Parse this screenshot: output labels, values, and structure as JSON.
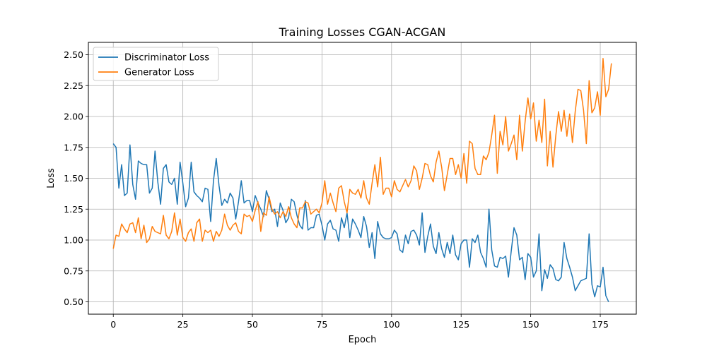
{
  "chart_data": {
    "type": "line",
    "title": "Training Losses CGAN-ACGAN",
    "xlabel": "Epoch",
    "ylabel": "Loss",
    "xlim": [
      -8.95,
      187.95
    ],
    "ylim": [
      0.4,
      2.6
    ],
    "x_ticks": [
      0,
      25,
      50,
      75,
      100,
      125,
      150,
      175
    ],
    "y_ticks": [
      0.5,
      0.75,
      1.0,
      1.25,
      1.5,
      1.75,
      2.0,
      2.25,
      2.5
    ],
    "x_tick_labels": [
      "0",
      "25",
      "50",
      "75",
      "100",
      "125",
      "150",
      "175"
    ],
    "y_tick_labels": [
      "0.50",
      "0.75",
      "1.00",
      "1.25",
      "1.50",
      "1.75",
      "2.00",
      "2.25",
      "2.50"
    ],
    "grid": true,
    "legend": "top-left",
    "x_start": 0,
    "series": [
      {
        "name": "Discriminator Loss",
        "color": "#1f77b4",
        "values": [
          1.78,
          1.75,
          1.42,
          1.61,
          1.36,
          1.38,
          1.77,
          1.45,
          1.33,
          1.64,
          1.62,
          1.61,
          1.61,
          1.38,
          1.42,
          1.72,
          1.47,
          1.29,
          1.58,
          1.61,
          1.47,
          1.45,
          1.5,
          1.29,
          1.63,
          1.46,
          1.27,
          1.34,
          1.63,
          1.39,
          1.36,
          1.34,
          1.31,
          1.42,
          1.41,
          1.15,
          1.48,
          1.66,
          1.44,
          1.28,
          1.33,
          1.3,
          1.38,
          1.34,
          1.17,
          1.31,
          1.48,
          1.3,
          1.32,
          1.32,
          1.23,
          1.36,
          1.3,
          1.25,
          1.19,
          1.4,
          1.33,
          1.23,
          1.25,
          1.11,
          1.3,
          1.24,
          1.14,
          1.18,
          1.33,
          1.31,
          1.2,
          1.12,
          1.09,
          1.32,
          1.08,
          1.1,
          1.1,
          1.2,
          1.21,
          1.12,
          1.0,
          1.13,
          1.16,
          1.09,
          1.08,
          0.99,
          1.18,
          1.1,
          1.22,
          1.02,
          1.17,
          1.13,
          1.08,
          1.02,
          1.19,
          1.11,
          0.94,
          1.06,
          0.85,
          1.15,
          1.05,
          1.02,
          1.01,
          1.01,
          1.02,
          1.08,
          1.05,
          0.92,
          0.9,
          1.04,
          0.97,
          1.07,
          1.08,
          1.04,
          0.96,
          1.22,
          0.9,
          1.03,
          1.13,
          0.95,
          0.89,
          1.06,
          0.93,
          0.86,
          0.98,
          0.89,
          1.04,
          0.88,
          0.84,
          0.97,
          1.0,
          1.0,
          0.78,
          1.01,
          0.98,
          1.04,
          0.9,
          0.85,
          0.78,
          1.25,
          0.92,
          0.79,
          0.78,
          0.86,
          0.85,
          0.87,
          0.7,
          0.91,
          1.1,
          1.04,
          0.84,
          0.86,
          0.68,
          0.89,
          0.86,
          0.7,
          0.75,
          1.05,
          0.59,
          0.76,
          0.69,
          0.8,
          0.77,
          0.68,
          0.67,
          0.7,
          0.98,
          0.85,
          0.78,
          0.7,
          0.59,
          0.63,
          0.67,
          0.68,
          0.69,
          1.05,
          0.64,
          0.54,
          0.63,
          0.62,
          0.78,
          0.55,
          0.5
        ]
      },
      {
        "name": "Generator Loss",
        "color": "#ff7f0e",
        "values": [
          0.93,
          1.04,
          1.03,
          1.13,
          1.09,
          1.06,
          1.13,
          1.14,
          1.06,
          1.18,
          1.01,
          1.12,
          0.98,
          1.01,
          1.11,
          1.07,
          1.06,
          1.05,
          1.2,
          1.04,
          1.01,
          1.07,
          1.22,
          1.04,
          1.17,
          1.02,
          0.99,
          1.06,
          1.09,
          0.99,
          1.14,
          1.17,
          0.99,
          1.08,
          1.06,
          1.08,
          0.99,
          1.07,
          1.03,
          1.08,
          1.21,
          1.12,
          1.08,
          1.12,
          1.14,
          1.07,
          1.05,
          1.21,
          1.19,
          1.2,
          1.15,
          1.24,
          1.31,
          1.07,
          1.22,
          1.2,
          1.35,
          1.25,
          1.21,
          1.23,
          1.18,
          1.23,
          1.19,
          1.27,
          1.18,
          1.13,
          1.1,
          1.26,
          1.26,
          1.31,
          1.3,
          1.21,
          1.23,
          1.25,
          1.22,
          1.3,
          1.48,
          1.29,
          1.38,
          1.3,
          1.23,
          1.42,
          1.44,
          1.31,
          1.22,
          1.41,
          1.38,
          1.37,
          1.41,
          1.34,
          1.48,
          1.34,
          1.29,
          1.46,
          1.61,
          1.43,
          1.67,
          1.37,
          1.42,
          1.42,
          1.35,
          1.48,
          1.41,
          1.39,
          1.44,
          1.49,
          1.43,
          1.48,
          1.6,
          1.56,
          1.41,
          1.5,
          1.62,
          1.61,
          1.52,
          1.47,
          1.63,
          1.72,
          1.59,
          1.4,
          1.53,
          1.66,
          1.66,
          1.53,
          1.61,
          1.5,
          1.7,
          1.46,
          1.8,
          1.78,
          1.58,
          1.53,
          1.53,
          1.68,
          1.65,
          1.71,
          1.85,
          2.01,
          1.54,
          1.88,
          1.77,
          2.0,
          1.72,
          1.78,
          1.85,
          1.65,
          2.01,
          1.72,
          1.96,
          2.15,
          1.98,
          2.11,
          1.8,
          1.97,
          1.79,
          2.14,
          1.6,
          1.88,
          1.59,
          1.84,
          2.04,
          1.88,
          2.05,
          1.84,
          2.02,
          1.79,
          2.04,
          2.22,
          2.21,
          2.05,
          1.78,
          2.29,
          2.03,
          2.07,
          2.2,
          2.01,
          2.47,
          2.16,
          2.22,
          2.43
        ]
      }
    ]
  }
}
